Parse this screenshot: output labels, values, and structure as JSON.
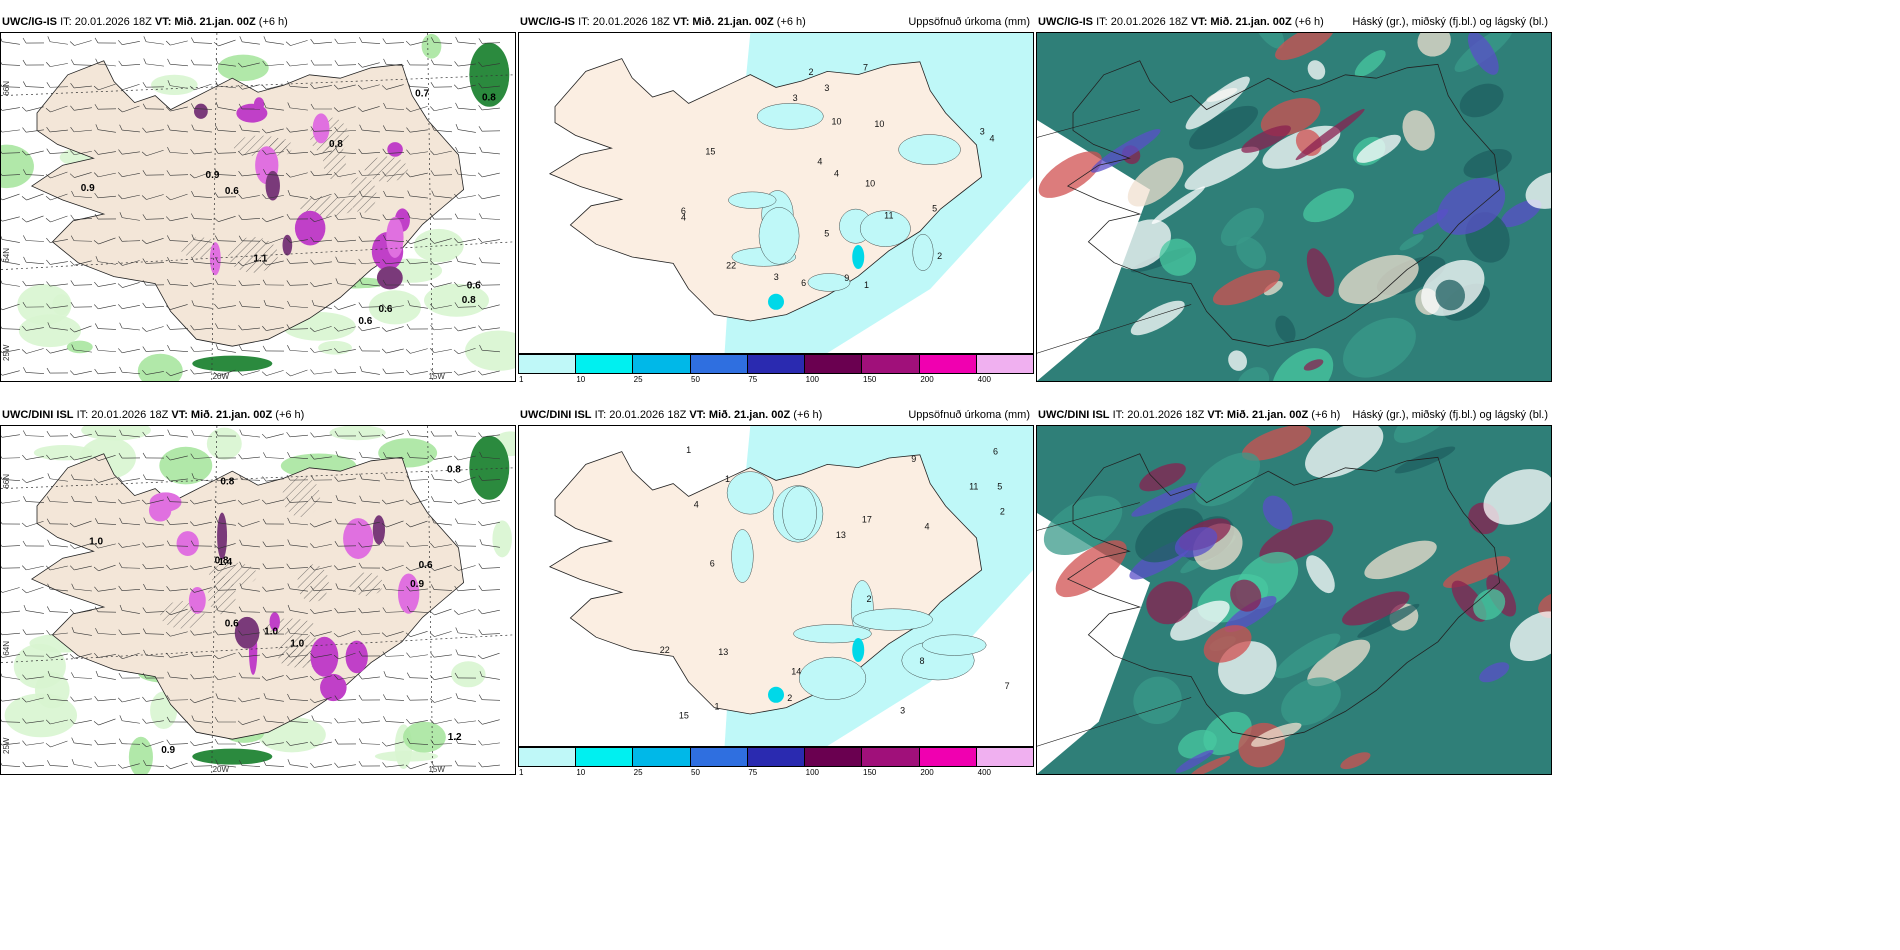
{
  "panels": [
    {
      "left": "UWC/IG-IS",
      "it": "IT: 20.01.2026 18Z",
      "vt_label": "VT:",
      "vt": "Mið. 21.jan. 00Z",
      "lead": "(+6 h)",
      "right": ""
    },
    {
      "left": "UWC/IG-IS",
      "it": "IT: 20.01.2026 18Z",
      "vt_label": "VT:",
      "vt": "Mið. 21.jan. 00Z",
      "lead": "(+6 h)",
      "right": "Uppsöfnuð úrkoma (mm)"
    },
    {
      "left": "UWC/IG-IS",
      "it": "IT: 20.01.2026 18Z",
      "vt_label": "VT:",
      "vt": "Mið. 21.jan. 00Z",
      "lead": "(+6 h)",
      "right": "Háský (gr.), miðský (fj.bl.) og lágský (bl.)"
    },
    {
      "left": "UWC/DINI ISL",
      "it": "IT: 20.01.2026 18Z",
      "vt_label": "VT:",
      "vt": "Mið. 21.jan. 00Z",
      "lead": "(+6 h)",
      "right": ""
    },
    {
      "left": "UWC/DINI ISL",
      "it": "IT: 20.01.2026 18Z",
      "vt_label": "VT:",
      "vt": "Mið. 21.jan. 00Z",
      "lead": "(+6 h)",
      "right": "Uppsöfnuð úrkoma (mm)"
    },
    {
      "left": "UWC/DINI ISL",
      "it": "IT: 20.01.2026 18Z",
      "vt_label": "VT:",
      "vt": "Mið. 21.jan. 00Z",
      "lead": "(+6 h)",
      "right": "Háský (gr.), miðský (fj.bl.) og lágský (bl.)"
    }
  ],
  "axes": {
    "lat_66": "66N",
    "lat_64": "64N",
    "lon_25": "25W",
    "lon_20": "20W",
    "lon_15": "15W"
  },
  "colorbar": {
    "ticks": [
      "1",
      "10",
      "25",
      "50",
      "75",
      "100",
      "150",
      "200",
      "400"
    ],
    "colors": [
      "#bff8f8",
      "#00f0f0",
      "#00b8e8",
      "#2f6fe0",
      "#2a2ab0",
      "#6a0050",
      "#a0107a",
      "#f000b0",
      "#f0b0f0"
    ]
  },
  "precip_labels_top": [
    "1",
    "2",
    "3",
    "4",
    "4",
    "3",
    "6",
    "7",
    "10",
    "11",
    "15",
    "22",
    "9",
    "5",
    "2",
    "4",
    "3",
    "10",
    "10",
    "5",
    "4",
    "3",
    "6"
  ],
  "precip_labels_bottom": [
    "1",
    "2",
    "3",
    "4",
    "5",
    "6",
    "8",
    "9",
    "13",
    "14",
    "17",
    "15",
    "22",
    "11",
    "13",
    "7",
    "6",
    "1",
    "2",
    "4",
    "2",
    "1"
  ],
  "wind_labels_top": [
    "0.6",
    "0.7",
    "0.9",
    "0.8",
    "1.1",
    "0.8",
    "0.6",
    "0.6",
    "0.8",
    "0.9",
    "0.6"
  ],
  "wind_labels_bottom": [
    "0.8",
    "0.9",
    "1.4",
    "1.0",
    "0.8",
    "0.6",
    "1.2",
    "1.0",
    "0.9",
    "0.6",
    "0.8",
    "1.0"
  ]
}
